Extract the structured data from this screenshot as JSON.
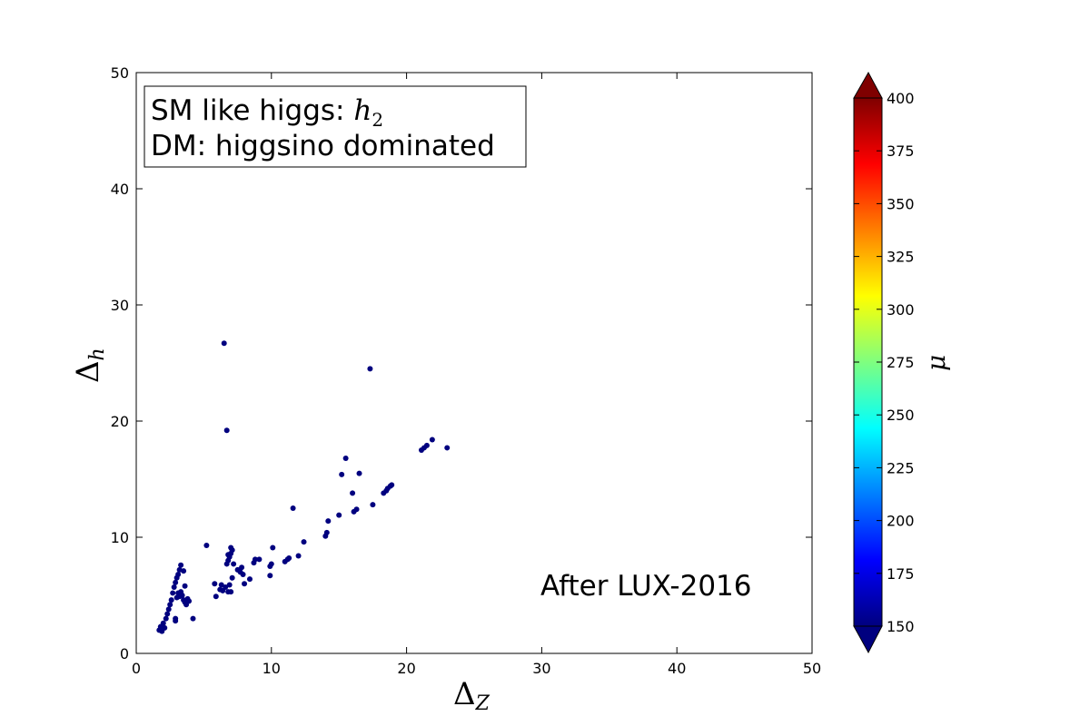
{
  "chart_data": {
    "type": "scatter",
    "xlabel": "Δ",
    "xlabel_sub": "Z",
    "ylabel": "Δ",
    "ylabel_sub": "h",
    "xlim": [
      0,
      50
    ],
    "ylim": [
      0,
      50
    ],
    "x_ticks": [
      "0",
      "10",
      "20",
      "30",
      "40",
      "50"
    ],
    "y_ticks": [
      "0",
      "10",
      "20",
      "30",
      "40",
      "50"
    ],
    "grid": false,
    "legend_box": {
      "line1_text": "SM like higgs: ",
      "line1_math": "h",
      "line1_math_sub": "2",
      "line2_text": "DM: higgsino dominated",
      "placement": "top-left"
    },
    "annotation": "After LUX-2016",
    "colorbar": {
      "label": "μ",
      "range": [
        150,
        400
      ],
      "ticks": [
        "150",
        "175",
        "200",
        "225",
        "250",
        "275",
        "300",
        "325",
        "350",
        "375",
        "400"
      ],
      "colormap": [
        "#00007f",
        "#0000ff",
        "#007fff",
        "#00ffff",
        "#7fff7f",
        "#ffff00",
        "#ff7f00",
        "#ff0000",
        "#7f0000"
      ],
      "extend": "both"
    },
    "marker_color": "#00007f",
    "points": [
      [
        1.7,
        2.0
      ],
      [
        1.8,
        2.3
      ],
      [
        1.9,
        1.9
      ],
      [
        2.0,
        2.6
      ],
      [
        2.1,
        2.2
      ],
      [
        2.2,
        3.0
      ],
      [
        2.3,
        3.4
      ],
      [
        2.4,
        3.8
      ],
      [
        2.5,
        4.2
      ],
      [
        2.6,
        4.6
      ],
      [
        2.7,
        5.2
      ],
      [
        2.8,
        5.7
      ],
      [
        2.9,
        6.1
      ],
      [
        3.0,
        6.5
      ],
      [
        3.1,
        6.8
      ],
      [
        3.2,
        7.2
      ],
      [
        3.3,
        7.6
      ],
      [
        3.0,
        4.8
      ],
      [
        3.1,
        5.2
      ],
      [
        3.2,
        4.9
      ],
      [
        3.3,
        5.3
      ],
      [
        3.4,
        5.0
      ],
      [
        3.5,
        4.6
      ],
      [
        3.6,
        4.4
      ],
      [
        3.7,
        4.2
      ],
      [
        3.8,
        4.7
      ],
      [
        3.5,
        7.1
      ],
      [
        3.6,
        5.8
      ],
      [
        2.9,
        3.0
      ],
      [
        2.9,
        2.8
      ],
      [
        4.2,
        3.0
      ],
      [
        3.9,
        4.5
      ],
      [
        5.2,
        9.3
      ],
      [
        5.8,
        6.0
      ],
      [
        5.9,
        4.9
      ],
      [
        6.2,
        5.5
      ],
      [
        6.3,
        5.9
      ],
      [
        6.4,
        5.4
      ],
      [
        6.6,
        5.7
      ],
      [
        6.8,
        5.3
      ],
      [
        6.9,
        5.9
      ],
      [
        7.0,
        5.3
      ],
      [
        6.7,
        7.7
      ],
      [
        6.8,
        8.0
      ],
      [
        6.9,
        8.3
      ],
      [
        7.0,
        8.6
      ],
      [
        7.1,
        8.9
      ],
      [
        7.0,
        9.1
      ],
      [
        6.8,
        8.5
      ],
      [
        7.2,
        7.7
      ],
      [
        7.1,
        6.5
      ],
      [
        7.5,
        7.2
      ],
      [
        7.7,
        7.0
      ],
      [
        7.8,
        7.4
      ],
      [
        7.9,
        6.8
      ],
      [
        8.0,
        6.0
      ],
      [
        8.4,
        6.4
      ],
      [
        8.7,
        7.8
      ],
      [
        8.8,
        8.1
      ],
      [
        9.1,
        8.1
      ],
      [
        9.9,
        6.7
      ],
      [
        9.9,
        7.5
      ],
      [
        10.0,
        7.7
      ],
      [
        10.1,
        9.1
      ],
      [
        11.0,
        7.9
      ],
      [
        11.2,
        8.1
      ],
      [
        11.3,
        8.2
      ],
      [
        11.6,
        12.5
      ],
      [
        12.0,
        8.4
      ],
      [
        12.4,
        9.6
      ],
      [
        14.0,
        10.1
      ],
      [
        14.1,
        10.4
      ],
      [
        14.2,
        11.4
      ],
      [
        15.0,
        11.9
      ],
      [
        15.2,
        15.4
      ],
      [
        15.5,
        16.8
      ],
      [
        16.0,
        13.8
      ],
      [
        16.1,
        12.2
      ],
      [
        16.3,
        12.4
      ],
      [
        16.5,
        15.5
      ],
      [
        17.5,
        12.8
      ],
      [
        18.3,
        13.8
      ],
      [
        18.5,
        14.0
      ],
      [
        18.6,
        14.2
      ],
      [
        18.8,
        14.4
      ],
      [
        18.9,
        14.5
      ],
      [
        21.1,
        17.5
      ],
      [
        21.3,
        17.7
      ],
      [
        21.5,
        17.9
      ],
      [
        21.9,
        18.4
      ],
      [
        23.0,
        17.7
      ],
      [
        6.5,
        26.7
      ],
      [
        6.7,
        19.2
      ],
      [
        17.3,
        24.5
      ]
    ]
  }
}
